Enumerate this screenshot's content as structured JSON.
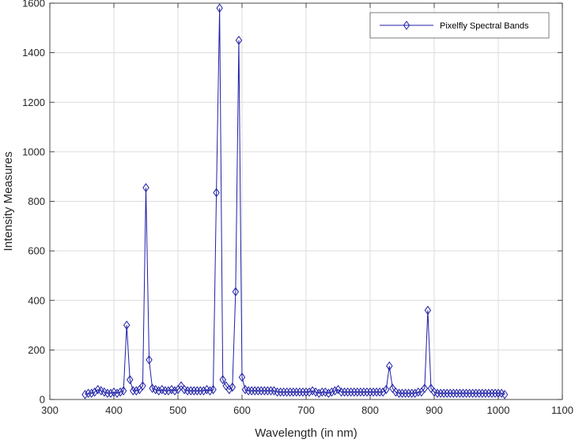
{
  "chart_data": {
    "type": "line",
    "title": "",
    "xlabel": "Wavelength (in nm)",
    "ylabel": "Intensity Measures",
    "xlim": [
      300,
      1100
    ],
    "ylim": [
      0,
      1600
    ],
    "xticks": [
      300,
      400,
      500,
      600,
      700,
      800,
      900,
      1000,
      1100
    ],
    "yticks": [
      0,
      200,
      400,
      600,
      800,
      1000,
      1200,
      1400,
      1600
    ],
    "grid": true,
    "legend_position": "top-right",
    "series": [
      {
        "name": "Pixelfly Spectral Bands",
        "color": "#1f1fa8",
        "marker": "diamond",
        "x": [
          355,
          360,
          365,
          370,
          375,
          380,
          385,
          390,
          395,
          400,
          405,
          410,
          415,
          420,
          425,
          430,
          435,
          440,
          445,
          450,
          455,
          460,
          465,
          470,
          475,
          480,
          485,
          490,
          495,
          500,
          505,
          510,
          515,
          520,
          525,
          530,
          535,
          540,
          545,
          550,
          555,
          560,
          565,
          570,
          575,
          580,
          585,
          590,
          595,
          600,
          605,
          610,
          615,
          620,
          625,
          630,
          635,
          640,
          645,
          650,
          655,
          660,
          665,
          670,
          675,
          680,
          685,
          690,
          695,
          700,
          705,
          710,
          715,
          720,
          725,
          730,
          735,
          740,
          745,
          750,
          755,
          760,
          765,
          770,
          775,
          780,
          785,
          790,
          795,
          800,
          805,
          810,
          815,
          820,
          825,
          830,
          835,
          840,
          845,
          850,
          855,
          860,
          865,
          870,
          875,
          880,
          885,
          890,
          895,
          900,
          905,
          910,
          915,
          920,
          925,
          930,
          935,
          940,
          945,
          950,
          955,
          960,
          965,
          970,
          975,
          980,
          985,
          990,
          995,
          1000,
          1005,
          1010
        ],
        "values": [
          20,
          25,
          25,
          30,
          40,
          35,
          30,
          25,
          25,
          30,
          25,
          30,
          35,
          300,
          80,
          35,
          35,
          40,
          55,
          855,
          160,
          45,
          40,
          35,
          40,
          35,
          35,
          40,
          35,
          40,
          55,
          40,
          35,
          35,
          35,
          35,
          35,
          35,
          40,
          35,
          40,
          835,
          1580,
          80,
          55,
          40,
          50,
          435,
          1450,
          90,
          40,
          35,
          35,
          35,
          35,
          35,
          35,
          35,
          35,
          35,
          30,
          30,
          30,
          30,
          30,
          30,
          30,
          30,
          30,
          30,
          30,
          35,
          30,
          25,
          30,
          30,
          25,
          30,
          35,
          40,
          30,
          30,
          30,
          30,
          30,
          30,
          30,
          30,
          30,
          30,
          30,
          30,
          30,
          30,
          40,
          135,
          45,
          30,
          25,
          25,
          25,
          25,
          25,
          25,
          30,
          30,
          45,
          360,
          45,
          30,
          25,
          25,
          25,
          25,
          25,
          25,
          25,
          25,
          25,
          25,
          25,
          25,
          25,
          25,
          25,
          25,
          25,
          25,
          25,
          25,
          25,
          20
        ]
      }
    ]
  }
}
